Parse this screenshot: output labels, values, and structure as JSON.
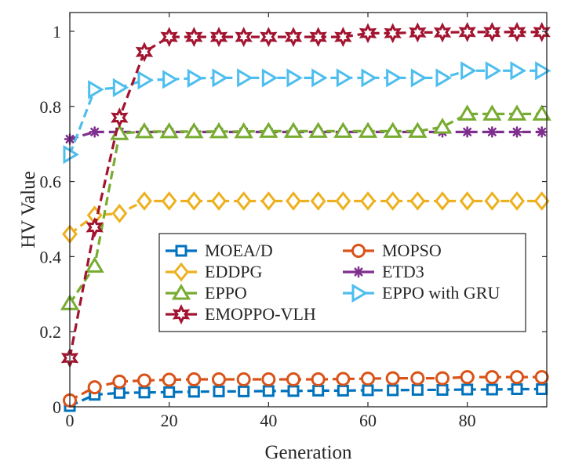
{
  "chart_data": {
    "type": "line",
    "title": "",
    "xlabel": "Generation",
    "ylabel": "HV Value",
    "xlim": [
      0,
      96
    ],
    "ylim": [
      0,
      1.05
    ],
    "grid": false,
    "legend_position": "center",
    "x": [
      0,
      5,
      10,
      15,
      20,
      25,
      30,
      35,
      40,
      45,
      50,
      55,
      60,
      65,
      70,
      75,
      80,
      85,
      90,
      95
    ],
    "x_ticks": [
      0,
      20,
      40,
      60,
      80
    ],
    "x_tick_labels": [
      "0",
      "20",
      "40",
      "60",
      "80"
    ],
    "y_ticks": [
      0,
      0.2,
      0.4,
      0.6,
      0.8,
      1
    ],
    "y_tick_labels": [
      "0",
      "0.2",
      "0.4",
      "0.6",
      "0.8",
      "1"
    ],
    "series": [
      {
        "name": "MOEA/D",
        "color": "#0072BD",
        "marker": "square",
        "values": [
          0.002,
          0.032,
          0.037,
          0.038,
          0.039,
          0.04,
          0.041,
          0.041,
          0.042,
          0.042,
          0.043,
          0.043,
          0.044,
          0.044,
          0.045,
          0.045,
          0.046,
          0.046,
          0.047,
          0.047
        ]
      },
      {
        "name": "MOPSO",
        "color": "#D95319",
        "marker": "circle",
        "values": [
          0.017,
          0.052,
          0.067,
          0.07,
          0.072,
          0.073,
          0.073,
          0.073,
          0.073,
          0.073,
          0.073,
          0.074,
          0.075,
          0.076,
          0.076,
          0.076,
          0.079,
          0.079,
          0.079,
          0.079
        ]
      },
      {
        "name": "EDDPG",
        "color": "#EDB120",
        "marker": "diamond",
        "values": [
          0.46,
          0.51,
          0.515,
          0.548,
          0.548,
          0.548,
          0.548,
          0.548,
          0.548,
          0.548,
          0.548,
          0.548,
          0.548,
          0.548,
          0.548,
          0.548,
          0.548,
          0.548,
          0.548,
          0.548
        ]
      },
      {
        "name": "ETD3",
        "color": "#7E2F8E",
        "marker": "star",
        "values": [
          0.713,
          0.732,
          0.732,
          0.732,
          0.732,
          0.732,
          0.732,
          0.732,
          0.732,
          0.732,
          0.732,
          0.732,
          0.732,
          0.732,
          0.732,
          0.732,
          0.732,
          0.732,
          0.732,
          0.732
        ]
      },
      {
        "name": "EPPO",
        "color": "#77AC30",
        "marker": "triangle-up",
        "values": [
          0.275,
          0.375,
          0.728,
          0.733,
          0.733,
          0.733,
          0.733,
          0.733,
          0.734,
          0.734,
          0.734,
          0.734,
          0.734,
          0.734,
          0.734,
          0.745,
          0.78,
          0.78,
          0.78,
          0.78
        ]
      },
      {
        "name": "EPPO with GRU",
        "color": "#4DBEEE",
        "marker": "triangle-right",
        "values": [
          0.672,
          0.845,
          0.85,
          0.87,
          0.872,
          0.875,
          0.876,
          0.876,
          0.876,
          0.876,
          0.876,
          0.876,
          0.876,
          0.876,
          0.876,
          0.876,
          0.895,
          0.895,
          0.895,
          0.895
        ]
      },
      {
        "name": "EMOPPO-VLH",
        "color": "#A2142F",
        "marker": "hexagram",
        "values": [
          0.13,
          0.478,
          0.77,
          0.945,
          0.985,
          0.985,
          0.985,
          0.985,
          0.985,
          0.985,
          0.985,
          0.985,
          0.995,
          0.995,
          0.997,
          0.997,
          0.998,
          0.998,
          0.998,
          0.998
        ]
      }
    ],
    "legend_order": [
      "MOEA/D",
      "MOPSO",
      "EDDPG",
      "ETD3",
      "EPPO",
      "EPPO with GRU",
      "EMOPPO-VLH"
    ]
  }
}
